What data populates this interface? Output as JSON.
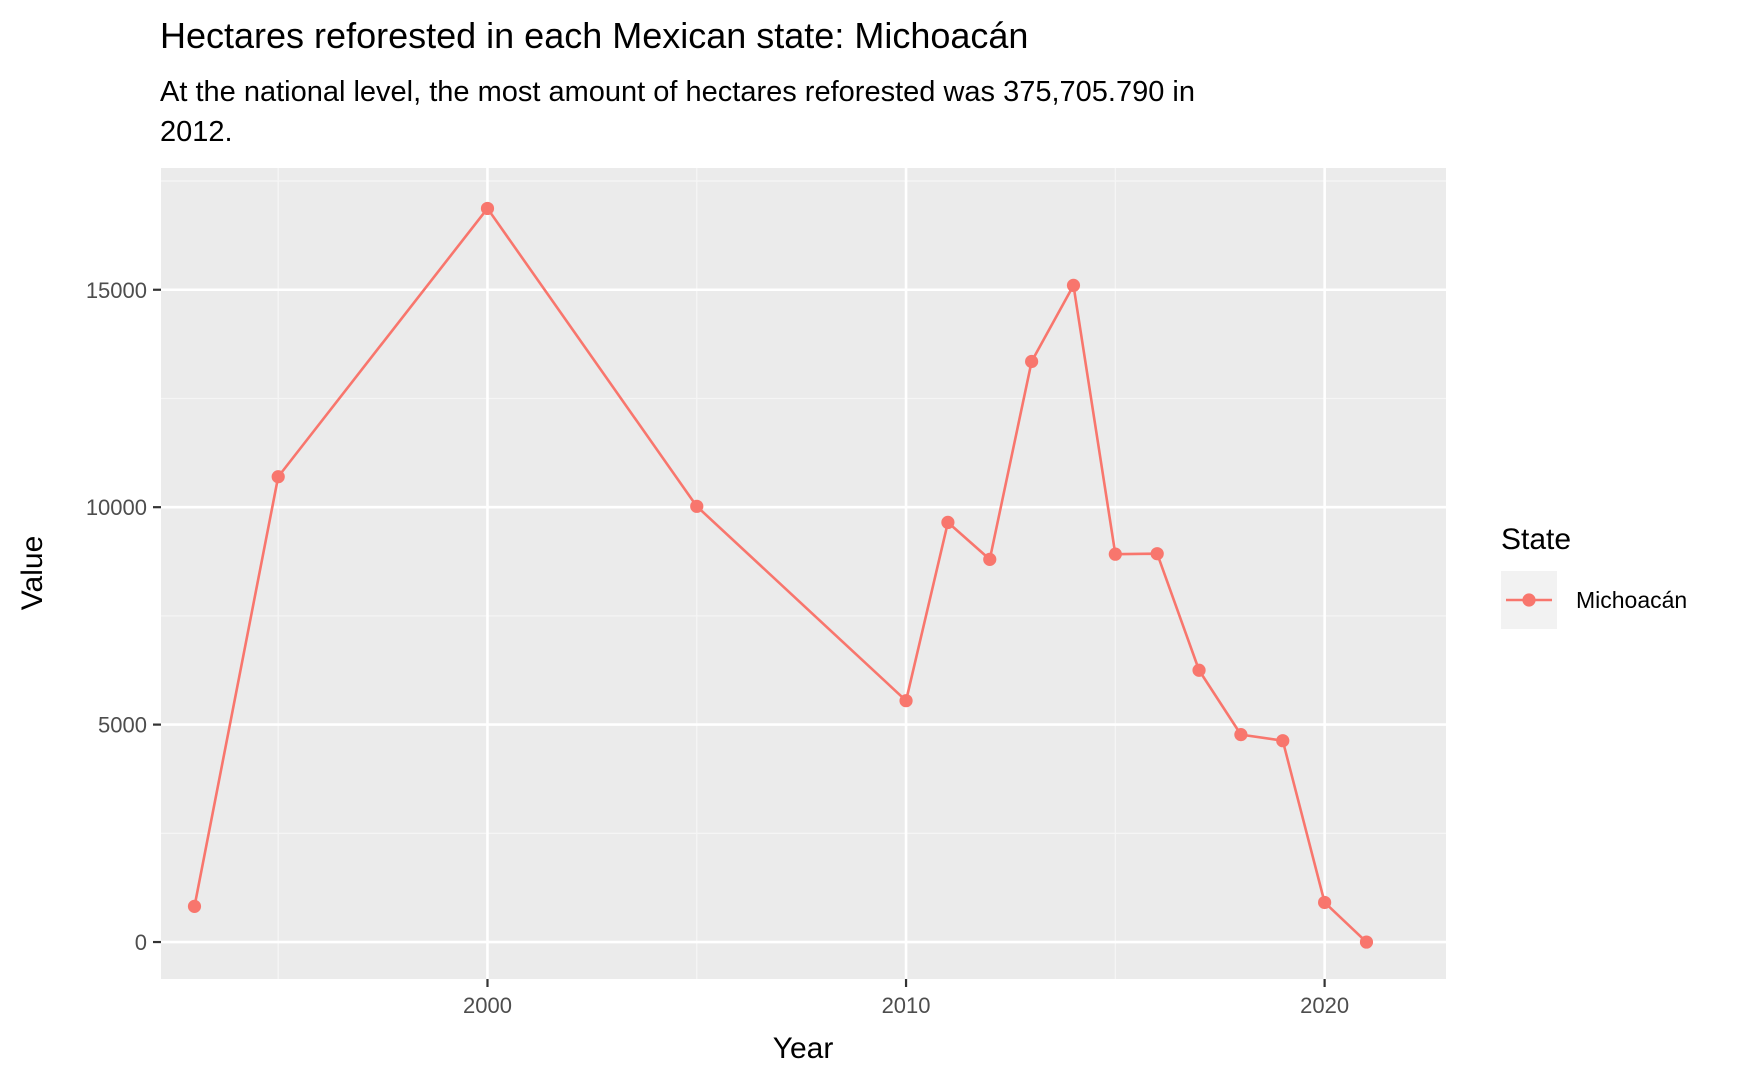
{
  "chart_data": {
    "type": "line",
    "title": "Hectares reforested in each Mexican state: Michoacán",
    "subtitle_lines": [
      "At the national level, the most amount of hectares reforested was 375,705.790 in",
      "2012."
    ],
    "xlabel": "Year",
    "ylabel": "Value",
    "xlim": [
      1992.2,
      2022.9
    ],
    "ylim": [
      -850,
      17800
    ],
    "x_ticks": [
      2000,
      2010,
      2020
    ],
    "y_ticks": [
      0,
      5000,
      10000,
      15000
    ],
    "grid": true,
    "legend": {
      "title": "State",
      "position": "right"
    },
    "series": [
      {
        "name": "Michoacán",
        "color": "#F8766D",
        "x": [
          1993,
          1995,
          2000,
          2005,
          2010,
          2011,
          2012,
          2013,
          2014,
          2015,
          2016,
          2017,
          2018,
          2019,
          2020,
          2021
        ],
        "values": [
          820,
          10700,
          16870,
          10020,
          5550,
          9650,
          8800,
          13350,
          15100,
          8920,
          8930,
          6250,
          4770,
          4630,
          910,
          0
        ]
      }
    ]
  },
  "colors": {
    "panel_background": "#EBEBEB",
    "grid_major": "#FFFFFF",
    "grid_minor": "#F5F5F5"
  }
}
